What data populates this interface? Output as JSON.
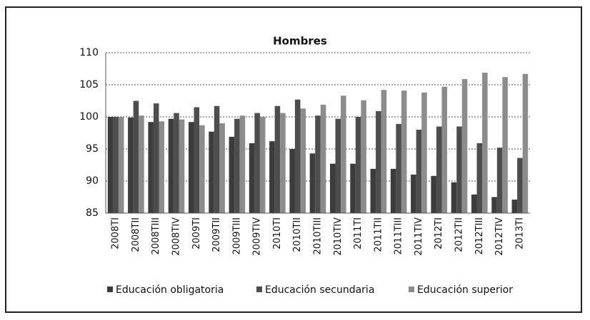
{
  "chart_data": {
    "type": "bar",
    "title": "Hombres",
    "categories": [
      "2008TI",
      "2008TII",
      "2008TIII",
      "2008TIV",
      "2009TI",
      "2009TII",
      "2009TIII",
      "2009TIV",
      "2010TI",
      "2010TII",
      "2010TIII",
      "2010TIV",
      "2011TI",
      "2011TII",
      "2011TIII",
      "2011TIV",
      "2012TI",
      "2012TII",
      "2012TIII",
      "2012TIV",
      "2013TI"
    ],
    "series": [
      {
        "name": "Educación obligatoria",
        "color": "#3c3c3c",
        "values": [
          100,
          99.9,
          99.2,
          99.7,
          99.2,
          97.7,
          96.9,
          95.9,
          96.2,
          95.0,
          94.3,
          92.7,
          92.7,
          91.9,
          91.9,
          91.0,
          90.8,
          89.8,
          87.9,
          87.5,
          87.1
        ]
      },
      {
        "name": "Educación secundaria",
        "color": "#4d4d4d",
        "values": [
          100,
          102.5,
          102.1,
          100.6,
          101.5,
          101.7,
          99.7,
          100.6,
          101.7,
          102.7,
          100.2,
          99.7,
          100.0,
          100.9,
          98.9,
          98.0,
          98.5,
          98.5,
          95.9,
          95.2,
          93.6
        ]
      },
      {
        "name": "Educación superior",
        "color": "#8c8c8c",
        "values": [
          100,
          100.2,
          99.3,
          99.6,
          98.7,
          99.0,
          100.2,
          100.0,
          100.6,
          101.3,
          101.9,
          103.3,
          102.6,
          104.2,
          104.1,
          103.8,
          104.7,
          105.9,
          106.9,
          106.2,
          106.7
        ]
      }
    ],
    "ylim": [
      85,
      110
    ],
    "yticks": [
      85,
      90,
      95,
      100,
      105,
      110
    ],
    "grid": true,
    "legend": "bottom"
  }
}
